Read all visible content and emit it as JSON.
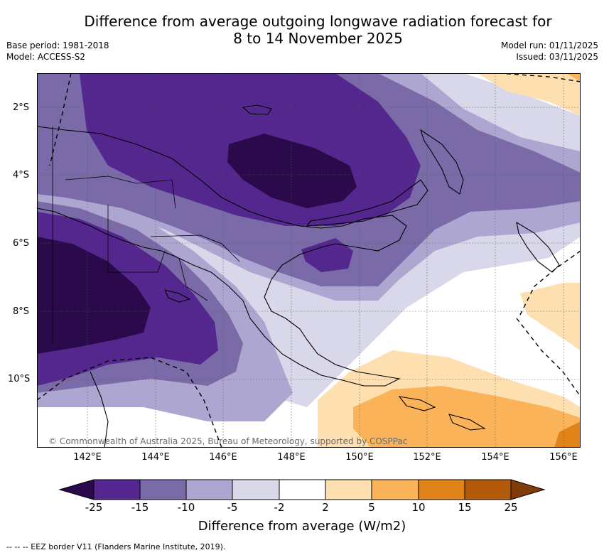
{
  "header": {
    "title_line1": "Difference from average outgoing longwave radiation forecast for",
    "title_line2": "8 to 14 November 2025",
    "base_period": "Base period: 1981-2018",
    "model": "Model: ACCESS-S2",
    "model_run": "Model run: 01/11/2025",
    "issued": "Issued: 03/11/2025"
  },
  "map": {
    "copyright": "© Commonwealth of Australia 2025, Bureau of Meteorology, supported by COSPPac",
    "lat_labels": [
      "2°S",
      "4°S",
      "6°S",
      "8°S",
      "10°S"
    ],
    "lon_labels": [
      "142°E",
      "144°E",
      "146°E",
      "148°E",
      "150°E",
      "152°E",
      "154°E",
      "156°E"
    ]
  },
  "colorbar": {
    "title": "Difference from average (W/m2)",
    "ticks": [
      "-25",
      "-15",
      "-10",
      "-5",
      "-2",
      "2",
      "5",
      "10",
      "15",
      "25"
    ],
    "colors": {
      "lt_neg25": "#2a0a4a",
      "neg25_neg15": "#54278f",
      "neg15_neg10": "#7a6aa8",
      "neg10_neg5": "#aca6d0",
      "neg5_neg2": "#d8d8ea",
      "neg2_2": "#ffffff",
      "2_5": "#fddfb0",
      "5_10": "#fbb35a",
      "10_15": "#e08318",
      "15_25": "#b25a0a",
      "gt_25": "#7f3b08"
    }
  },
  "footer": {
    "eez_legend": "-- -- -- EEZ border V11 (Flanders Marine Institute, 2019)."
  }
}
